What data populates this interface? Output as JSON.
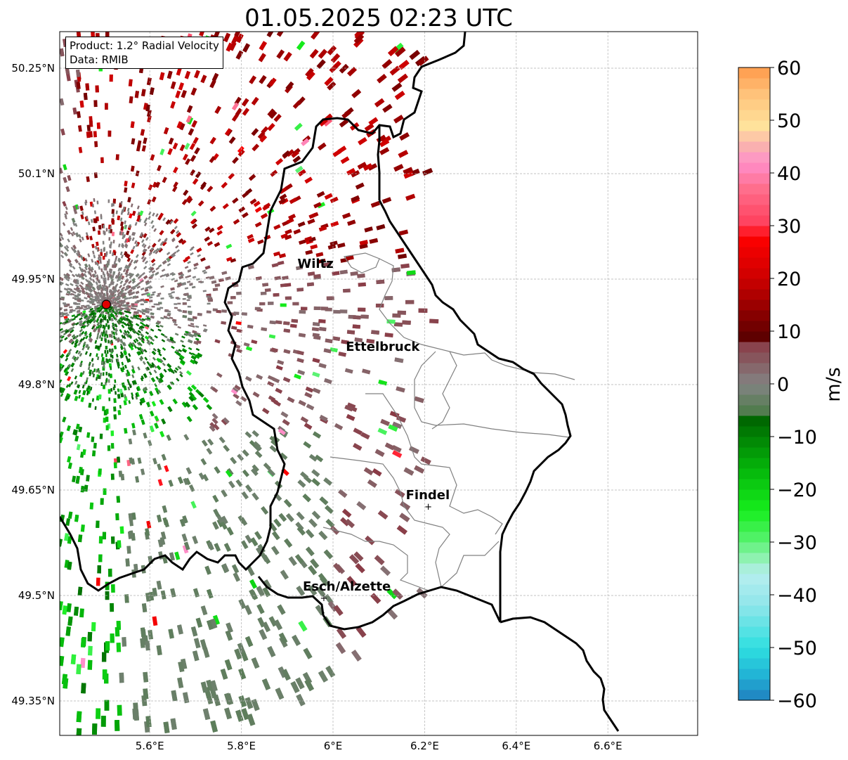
{
  "title": "01.05.2025 02:23 UTC",
  "info": {
    "product": "Product: 1.2° Radial Velocity",
    "data": "Data: RMIB"
  },
  "lat_ticks": [
    "50.25°N",
    "50.1°N",
    "49.95°N",
    "49.8°N",
    "49.65°N",
    "49.5°N",
    "49.35°N"
  ],
  "lon_ticks": [
    "5.6°E",
    "5.8°E",
    "6°E",
    "6.2°E",
    "6.4°E",
    "6.6°E"
  ],
  "cities": [
    {
      "name": "Wiltz"
    },
    {
      "name": "Ettelbruck"
    },
    {
      "name": "Findel"
    },
    {
      "name": "Esch/Alzette"
    }
  ],
  "radar_site": {
    "lon": 5.505,
    "lat": 49.914
  },
  "colorbar": {
    "unit": "m/s",
    "min": -60,
    "max": 60,
    "ticks": [
      "60",
      "50",
      "40",
      "30",
      "20",
      "10",
      "0",
      "−10",
      "−20",
      "−30",
      "−40",
      "−50",
      "−60"
    ],
    "stops": [
      {
        "v": -60,
        "c": "#1f7fc0"
      },
      {
        "v": -55,
        "c": "#22b5d6"
      },
      {
        "v": -50,
        "c": "#2fdfe0"
      },
      {
        "v": -42,
        "c": "#8fe6ea"
      },
      {
        "v": -36,
        "c": "#b6eeef"
      },
      {
        "v": -33,
        "c": "#8ef2b0"
      },
      {
        "v": -29,
        "c": "#4ff265"
      },
      {
        "v": -24,
        "c": "#16ee1c"
      },
      {
        "v": -16,
        "c": "#04b40a"
      },
      {
        "v": -6,
        "c": "#005f00"
      },
      {
        "v": -5,
        "c": "#527c4f"
      },
      {
        "v": 0,
        "c": "#838383"
      },
      {
        "v": 8,
        "c": "#8a3a45"
      },
      {
        "v": 9,
        "c": "#5e0000"
      },
      {
        "v": 20,
        "c": "#cd0000"
      },
      {
        "v": 28,
        "c": "#ff0000"
      },
      {
        "v": 30,
        "c": "#ff3d5a"
      },
      {
        "v": 37,
        "c": "#ff6e8c"
      },
      {
        "v": 42,
        "c": "#ff8fcb"
      },
      {
        "v": 45,
        "c": "#fab0b0"
      },
      {
        "v": 49,
        "c": "#ffe29b"
      },
      {
        "v": 55,
        "c": "#ffc27a"
      },
      {
        "v": 60,
        "c": "#ff9a4a"
      }
    ]
  },
  "colors": {
    "border": "#000000",
    "districts": "#808080",
    "grid": "#b0b0b0",
    "site": "#e00000"
  }
}
